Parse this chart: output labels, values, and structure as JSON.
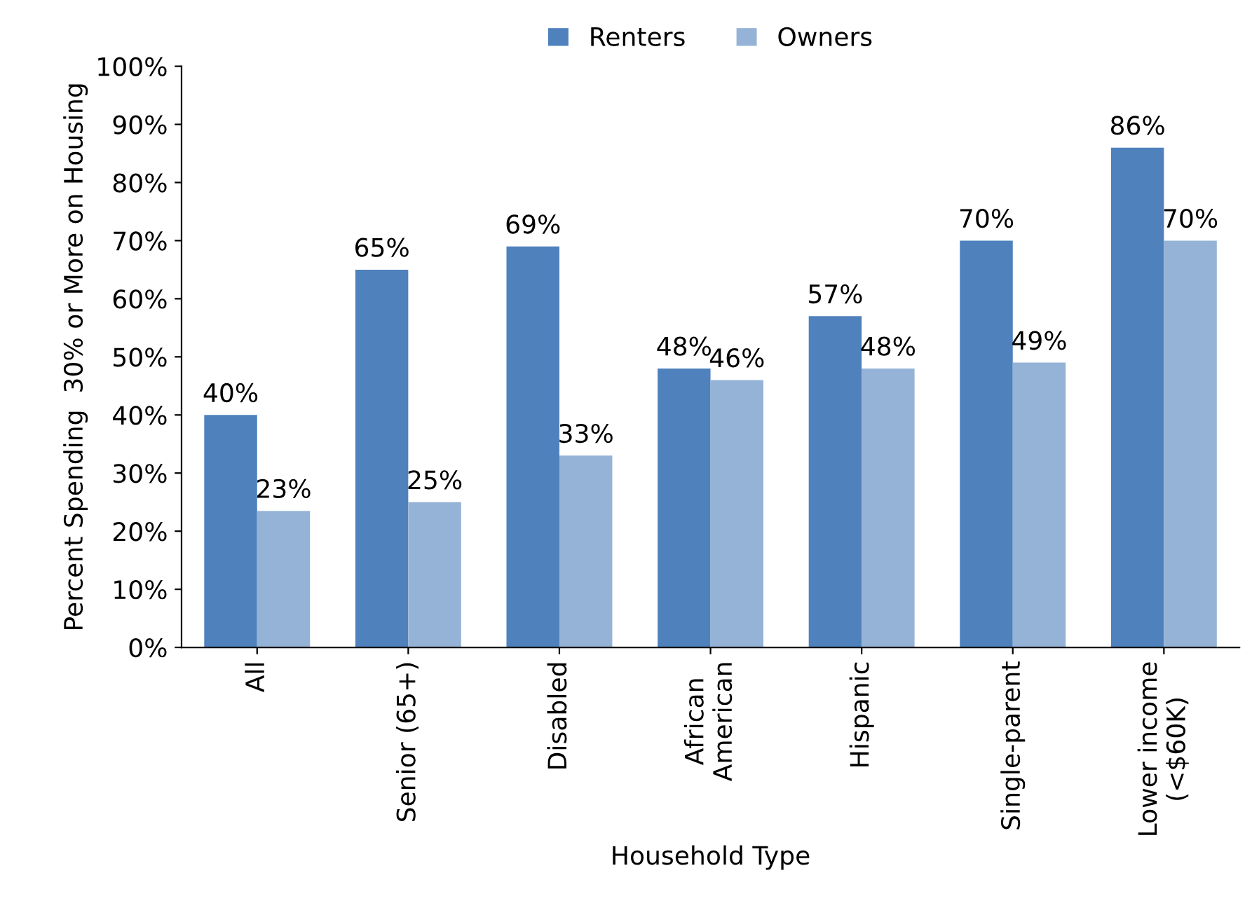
{
  "chart_data": {
    "type": "bar",
    "xlabel": "Household Type",
    "ylabel": "Percent Spending  30% or More on Housing",
    "categories": [
      "All",
      "Senior (65+)",
      "Disabled",
      "African\nAmerican",
      "Hispanic",
      "Single-parent",
      "Lower income\n(<$60K)"
    ],
    "series": [
      {
        "name": "Renters",
        "color": "#4f81bd",
        "values": [
          40,
          65,
          69,
          48,
          57,
          70,
          86
        ],
        "value_labels": [
          "40%",
          "65%",
          "69%",
          "48%",
          "57%",
          "70%",
          "86%"
        ]
      },
      {
        "name": "Owners",
        "color": "#95b3d7",
        "values": [
          23.5,
          25,
          33,
          46,
          48,
          49,
          70
        ],
        "value_labels": [
          "23%",
          "25%",
          "33%",
          "46%",
          "48%",
          "49%",
          "70%"
        ]
      }
    ],
    "ylim": [
      0,
      100
    ],
    "yticks": [
      {
        "value": 0,
        "label": "0%"
      },
      {
        "value": 10,
        "label": "10%"
      },
      {
        "value": 20,
        "label": "20%"
      },
      {
        "value": 30,
        "label": "30%"
      },
      {
        "value": 40,
        "label": "40%"
      },
      {
        "value": 50,
        "label": "50%"
      },
      {
        "value": 60,
        "label": "60%"
      },
      {
        "value": 70,
        "label": "70%"
      },
      {
        "value": 80,
        "label": "80%"
      },
      {
        "value": 90,
        "label": "90%"
      },
      {
        "value": 100,
        "label": "100%"
      }
    ],
    "grid": false,
    "legend": "top"
  }
}
